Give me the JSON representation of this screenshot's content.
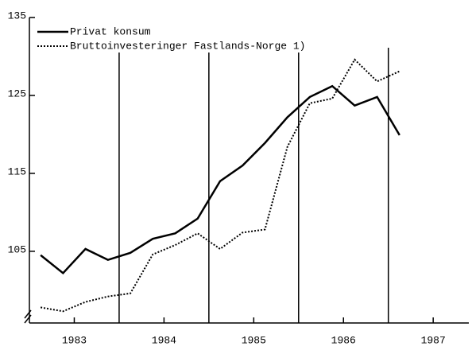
{
  "chart_data": {
    "type": "line",
    "x": [
      1983.125,
      1983.375,
      1983.625,
      1983.875,
      1984.125,
      1984.375,
      1984.625,
      1984.875,
      1985.125,
      1985.375,
      1985.625,
      1985.875,
      1986.125,
      1986.375,
      1986.625,
      1986.875,
      1987.125
    ],
    "series": [
      {
        "name": "Privat konsum",
        "color": "#000000",
        "style": "solid",
        "values": [
          104.5,
          102.2,
          105.3,
          103.9,
          104.8,
          106.6,
          107.3,
          109.2,
          114.0,
          116.0,
          118.9,
          122.2,
          124.8,
          126.2,
          123.7,
          124.8,
          119.9
        ]
      },
      {
        "name": "Bruttoinvesteringer Fastlands-Norge 1)",
        "color": "#000000",
        "style": "dotted",
        "values": [
          97.8,
          97.3,
          98.5,
          99.2,
          99.6,
          104.6,
          105.8,
          107.3,
          105.3,
          107.4,
          107.8,
          118.4,
          124.0,
          124.6,
          129.6,
          126.8,
          128.1
        ]
      }
    ],
    "xlim": [
      1983,
      1987.95
    ],
    "xticks": [
      {
        "value": 1983.5,
        "label": "1983"
      },
      {
        "value": 1984.5,
        "label": "1984"
      },
      {
        "value": 1985.5,
        "label": "1985"
      },
      {
        "value": 1986.5,
        "label": "1986"
      },
      {
        "value": 1987.5,
        "label": "1987"
      }
    ],
    "year_dividers": [
      1984,
      1985,
      1986,
      1987
    ],
    "ylim": [
      95.8,
      135
    ],
    "yticks": [
      105,
      115,
      125,
      135
    ],
    "axis_break": true,
    "legend": "upper left"
  }
}
